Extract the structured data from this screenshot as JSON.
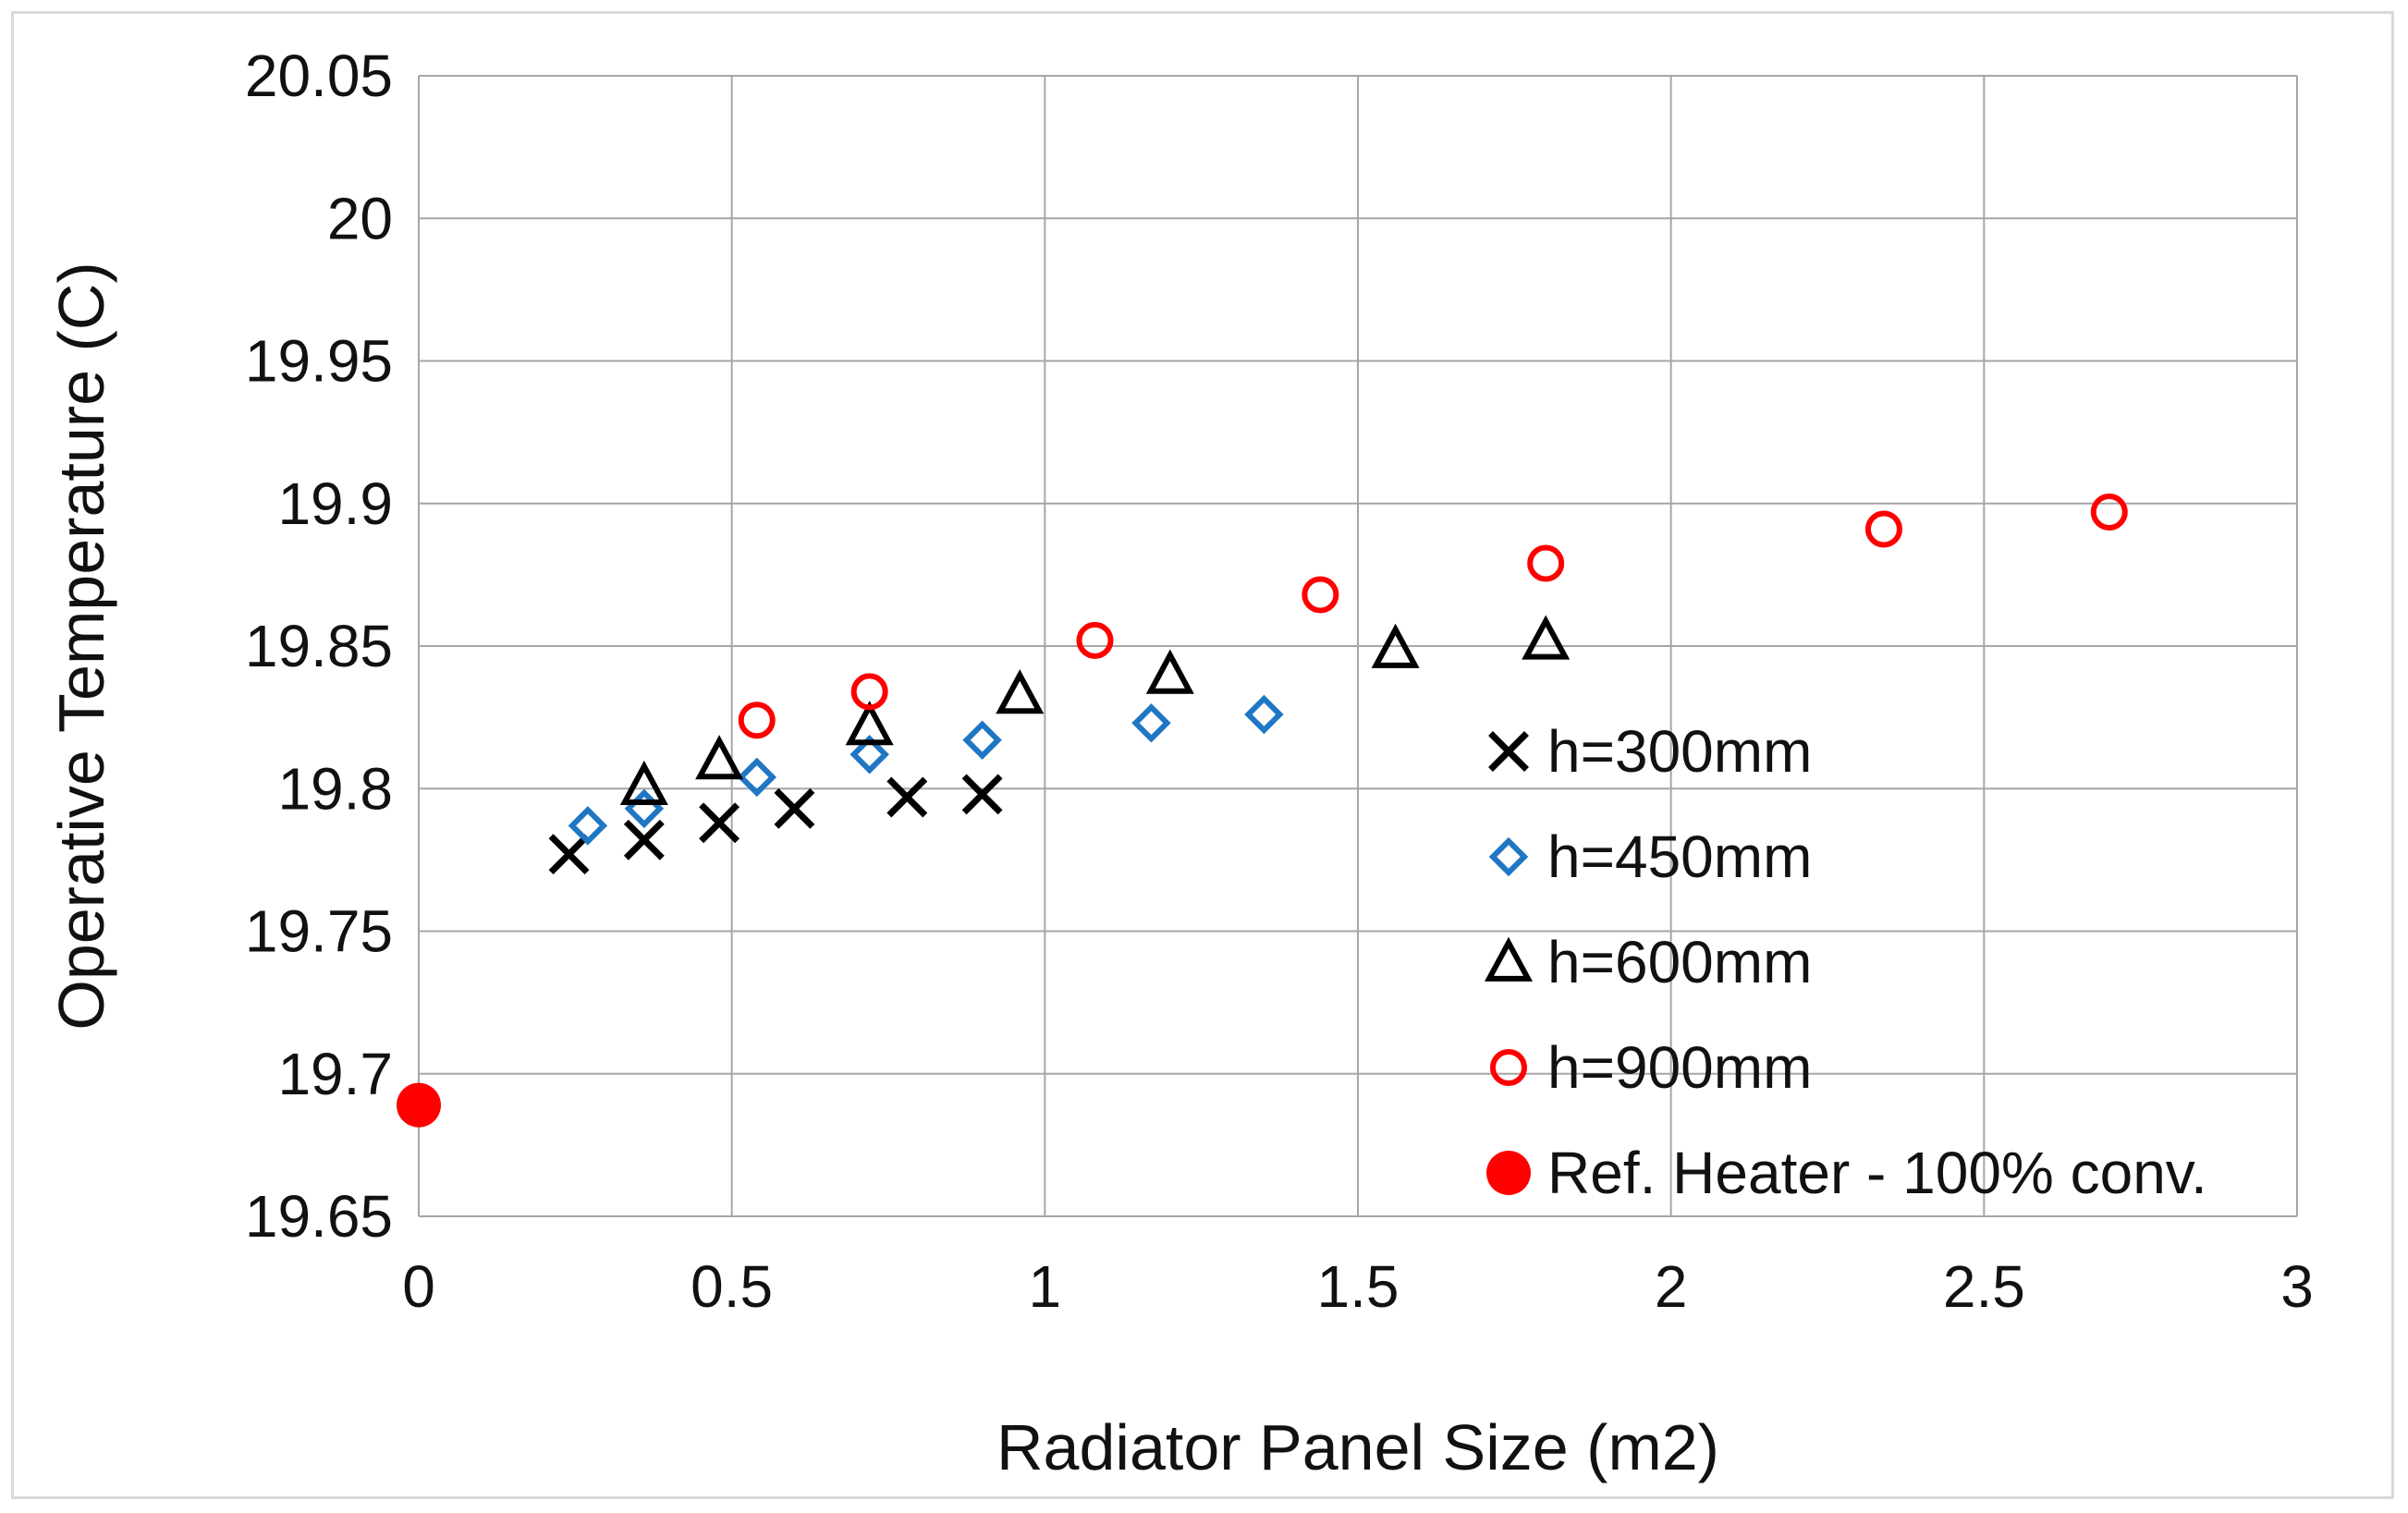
{
  "chart_data": {
    "type": "scatter",
    "xlabel": "Radiator Panel Size (m2)",
    "ylabel": "Operative Temperature (C)",
    "xlim": [
      0,
      3
    ],
    "ylim": [
      19.65,
      20.05
    ],
    "x_ticks": [
      "0",
      "0.5",
      "1",
      "1.5",
      "2",
      "2.5",
      "3"
    ],
    "y_ticks": [
      "19.65",
      "19.7",
      "19.75",
      "19.8",
      "19.85",
      "19.9",
      "19.95",
      "20",
      "20.05"
    ],
    "grid": true,
    "legend_position": "right",
    "series": [
      {
        "name": "h=300mm",
        "marker": "x",
        "color": "#000000",
        "points": [
          [
            0.24,
            19.777
          ],
          [
            0.36,
            19.782
          ],
          [
            0.48,
            19.788
          ],
          [
            0.6,
            19.793
          ],
          [
            0.78,
            19.797
          ],
          [
            0.9,
            19.798
          ]
        ]
      },
      {
        "name": "h=450mm",
        "marker": "diamond",
        "color": "#1f77c4",
        "points": [
          [
            0.27,
            19.787
          ],
          [
            0.36,
            19.793
          ],
          [
            0.54,
            19.804
          ],
          [
            0.72,
            19.812
          ],
          [
            0.9,
            19.817
          ],
          [
            1.17,
            19.823
          ],
          [
            1.35,
            19.826
          ]
        ]
      },
      {
        "name": "h=600mm",
        "marker": "triangle",
        "color": "#000000",
        "points": [
          [
            0.36,
            19.801
          ],
          [
            0.48,
            19.81
          ],
          [
            0.72,
            19.822
          ],
          [
            0.96,
            19.833
          ],
          [
            1.2,
            19.84
          ],
          [
            1.56,
            19.849
          ],
          [
            1.8,
            19.852
          ]
        ]
      },
      {
        "name": "h=900mm",
        "marker": "circle-open",
        "color": "#ff0000",
        "points": [
          [
            0.54,
            19.824
          ],
          [
            0.72,
            19.834
          ],
          [
            1.08,
            19.852
          ],
          [
            1.44,
            19.868
          ],
          [
            1.8,
            19.879
          ],
          [
            2.34,
            19.891
          ],
          [
            2.7,
            19.897
          ]
        ]
      },
      {
        "name": "Ref. Heater - 100% conv.",
        "marker": "circle-filled",
        "color": "#ff0000",
        "points": [
          [
            0,
            19.689
          ]
        ]
      }
    ]
  }
}
